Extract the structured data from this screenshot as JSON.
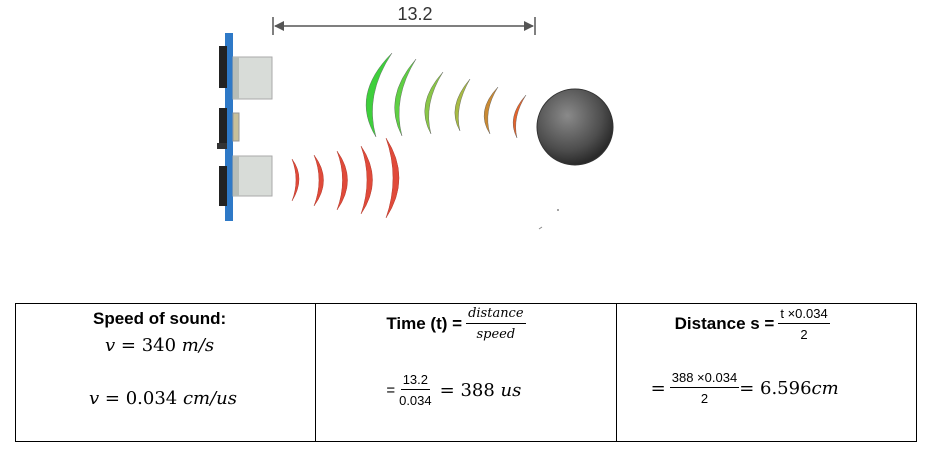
{
  "diagram": {
    "distance_label": "13.2",
    "colors": {
      "board": "#2e79c7",
      "transducer": "#d8dcd8",
      "emitted_wave": "#e04a3a",
      "echo_gradient": [
        "#3ecf3c",
        "#5fcf44",
        "#8ac648",
        "#a7ba44",
        "#c98a34",
        "#e4642c"
      ],
      "object": "#555555"
    }
  },
  "table": {
    "speed": {
      "title": "Speed of sound:",
      "line1": {
        "var": "v",
        "eq": " = 340 ",
        "unit": "m/s"
      },
      "line2": {
        "var": "v",
        "eq": " = 0.034 ",
        "unit": "cm/us"
      }
    },
    "time": {
      "label": "Time (t) = ",
      "frac_num": "distance",
      "frac_den": "speed",
      "prefix": "=",
      "calc_num": "13.2",
      "calc_den": "0.034",
      "result": "= 388 ",
      "unit": "us"
    },
    "distance": {
      "label": "Distance s = ",
      "frac_num": "t ×0.034",
      "frac_den": "2",
      "prefix": "= ",
      "calc_num": "388 ×0.034",
      "calc_den": "2",
      "result": " = 6.596",
      "unit": "cm"
    }
  }
}
